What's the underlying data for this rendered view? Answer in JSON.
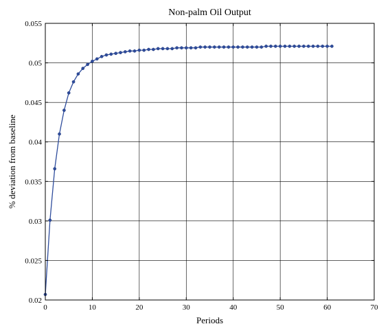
{
  "chart_data": {
    "type": "line",
    "title": "Non-palm Oil Output",
    "xlabel": "Periods",
    "ylabel": "% deviation from baseline",
    "xlim": [
      0,
      70
    ],
    "ylim": [
      0.02,
      0.055
    ],
    "xticks": [
      "0",
      "10",
      "20",
      "30",
      "40",
      "50",
      "60",
      "70"
    ],
    "yticks": [
      "0.02",
      "0.025",
      "0.03",
      "0.035",
      "0.04",
      "0.045",
      "0.05",
      "0.055"
    ],
    "grid": true,
    "series": [
      {
        "color": "#2E4C9C",
        "marker": "circle",
        "x": [
          0,
          1,
          2,
          3,
          4,
          5,
          6,
          7,
          8,
          9,
          10,
          11,
          12,
          13,
          14,
          15,
          16,
          17,
          18,
          19,
          20,
          21,
          22,
          23,
          24,
          25,
          26,
          27,
          28,
          29,
          30,
          31,
          32,
          33,
          34,
          35,
          36,
          37,
          38,
          39,
          40,
          41,
          42,
          43,
          44,
          45,
          46,
          47,
          48,
          49,
          50,
          51,
          52,
          53,
          54,
          55,
          56,
          57,
          58,
          59,
          60,
          61
        ],
        "y": [
          0.0207,
          0.0301,
          0.0366,
          0.041,
          0.044,
          0.0462,
          0.0476,
          0.0486,
          0.0493,
          0.0498,
          0.0502,
          0.0505,
          0.0508,
          0.051,
          0.0511,
          0.0512,
          0.0513,
          0.0514,
          0.0515,
          0.0515,
          0.0516,
          0.0516,
          0.0517,
          0.0517,
          0.0518,
          0.0518,
          0.0518,
          0.0518,
          0.0519,
          0.0519,
          0.0519,
          0.0519,
          0.0519,
          0.052,
          0.052,
          0.052,
          0.052,
          0.052,
          0.052,
          0.052,
          0.052,
          0.052,
          0.052,
          0.052,
          0.052,
          0.052,
          0.052,
          0.0521,
          0.0521,
          0.0521,
          0.0521,
          0.0521,
          0.0521,
          0.0521,
          0.0521,
          0.0521,
          0.0521,
          0.0521,
          0.0521,
          0.0521,
          0.0521,
          0.0521
        ]
      }
    ]
  }
}
